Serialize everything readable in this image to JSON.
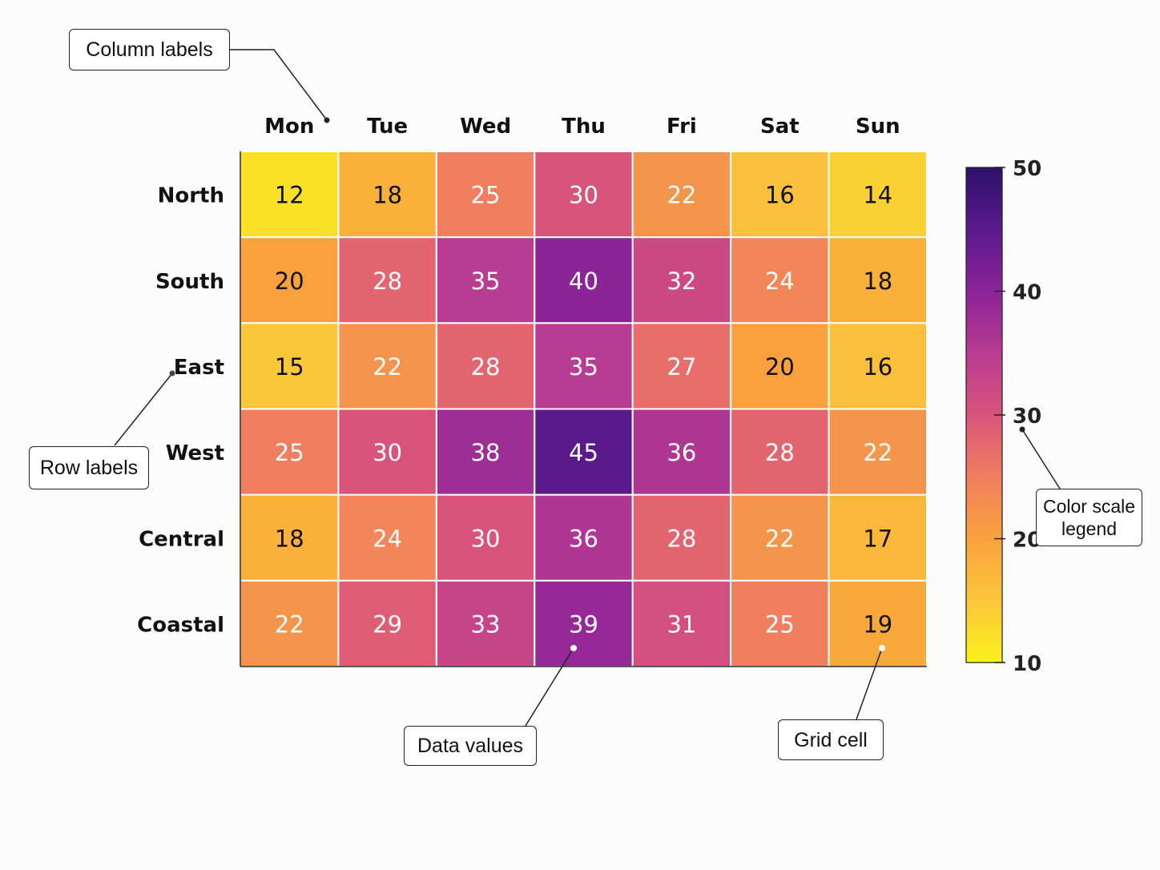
{
  "chart_data": {
    "type": "heatmap",
    "columns": [
      "Mon",
      "Tue",
      "Wed",
      "Thu",
      "Fri",
      "Sat",
      "Sun"
    ],
    "rows": [
      "North",
      "South",
      "East",
      "West",
      "Central",
      "Coastal"
    ],
    "values": [
      [
        12,
        18,
        25,
        30,
        22,
        16,
        14
      ],
      [
        20,
        28,
        35,
        40,
        32,
        24,
        18
      ],
      [
        15,
        22,
        28,
        35,
        27,
        20,
        16
      ],
      [
        25,
        30,
        38,
        45,
        36,
        28,
        22
      ],
      [
        18,
        24,
        30,
        36,
        28,
        22,
        17
      ],
      [
        22,
        29,
        33,
        39,
        31,
        25,
        19
      ]
    ],
    "color_scale": {
      "min": 10,
      "max": 50,
      "ticks": [
        10,
        20,
        30,
        40,
        50
      ],
      "colormap": "plasma-reversed",
      "stops": [
        "#f9f21c",
        "#fbc73a",
        "#f9a23d",
        "#f07f5f",
        "#d9547b",
        "#b83c91",
        "#8b2499",
        "#5a1a8c",
        "#2d1069"
      ]
    }
  },
  "annotations": {
    "column_labels": "Column labels",
    "row_labels": "Row labels",
    "color_scale_legend": "Color scale\nlegend",
    "data_values": "Data values",
    "grid_cell": "Grid cell"
  }
}
